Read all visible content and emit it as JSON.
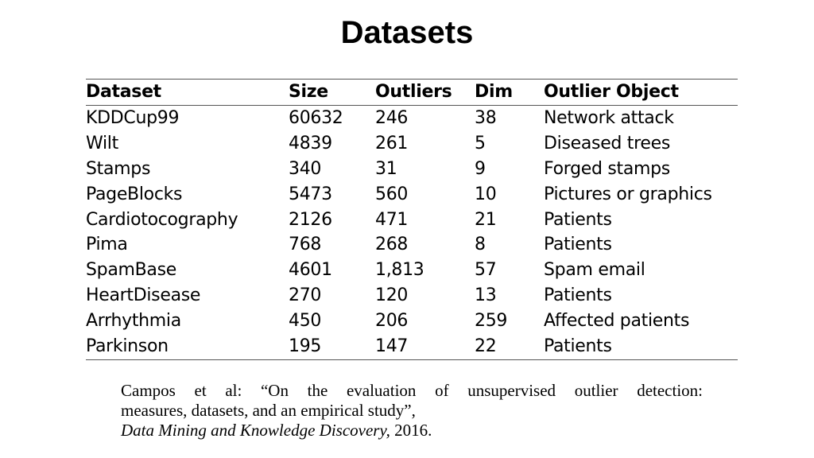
{
  "title": "Datasets",
  "table": {
    "headers": [
      "Dataset",
      "Size",
      "Outliers",
      "Dim",
      "Outlier Object"
    ],
    "rows": [
      [
        "KDDCup99",
        "60632",
        "246",
        "38",
        "Network attack"
      ],
      [
        "Wilt",
        "4839",
        "261",
        "5",
        "Diseased trees"
      ],
      [
        "Stamps",
        "340",
        "31",
        "9",
        "Forged stamps"
      ],
      [
        "PageBlocks",
        "5473",
        "560",
        "10",
        "Pictures or graphics"
      ],
      [
        "Cardiotocography",
        "2126",
        "471",
        "21",
        "Patients"
      ],
      [
        "Pima",
        "768",
        "268",
        "8",
        "Patients"
      ],
      [
        "SpamBase",
        "4601",
        "1,813",
        "57",
        "Spam email"
      ],
      [
        "HeartDisease",
        "270",
        "120",
        "13",
        "Patients"
      ],
      [
        "Arrhythmia",
        "450",
        "206",
        "259",
        "Affected patients"
      ],
      [
        "Parkinson",
        "195",
        "147",
        "22",
        "Patients"
      ]
    ]
  },
  "citation": {
    "line1": "Campos et al: “On the evaluation of unsupervised outlier detection:",
    "line2": "measures, datasets, and an empirical study”,",
    "journal": "Data Mining and Knowledge Discovery,",
    "year": " 2016."
  }
}
